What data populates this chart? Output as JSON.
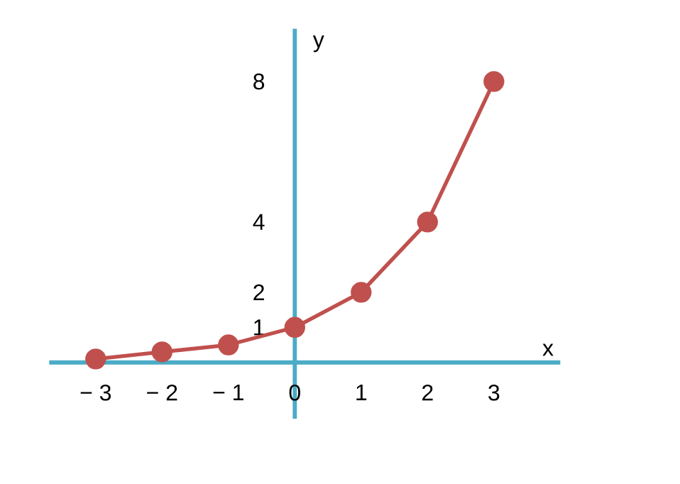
{
  "chart_data": {
    "type": "line",
    "xlabel": "x",
    "ylabel": "y",
    "x": [
      -3,
      -2,
      -1,
      0,
      1,
      2,
      3
    ],
    "series": [
      {
        "color": "#c0504d",
        "values": [
          0.1,
          0.3,
          0.5,
          1,
          2,
          4,
          8
        ]
      }
    ],
    "marker": "circle",
    "line_style": "solid",
    "xlim": [
      -3.7,
      4.0
    ],
    "ylim": [
      -1.6,
      9.5
    ],
    "xticks": [
      {
        "value": -3,
        "label": "− 3"
      },
      {
        "value": -2,
        "label": "− 2"
      },
      {
        "value": -1,
        "label": "− 1"
      },
      0,
      1,
      2,
      3
    ],
    "yticks": [
      1,
      2,
      4,
      8
    ],
    "grid": false
  }
}
